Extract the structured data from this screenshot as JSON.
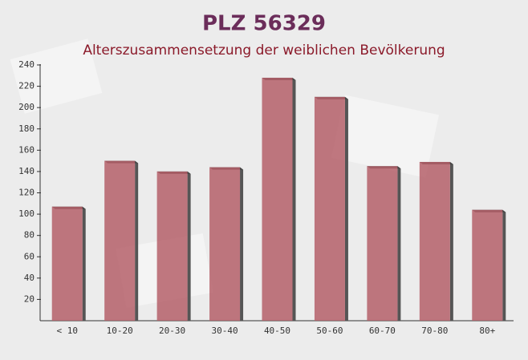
{
  "chart_data": {
    "type": "bar",
    "title": "PLZ 56329",
    "subtitle": "Alterszusammensetzung der weiblichen Bevölkerung",
    "categories": [
      "< 10",
      "10-20",
      "20-30",
      "30-40",
      "40-50",
      "50-60",
      "60-70",
      "70-80",
      "80+"
    ],
    "values": [
      107,
      150,
      140,
      144,
      228,
      210,
      145,
      149,
      104
    ],
    "color": "#b5606a",
    "ylim": [
      0,
      240
    ],
    "yticks": [
      20,
      40,
      60,
      80,
      100,
      120,
      140,
      160,
      180,
      200,
      220,
      240
    ],
    "grid": false
  }
}
